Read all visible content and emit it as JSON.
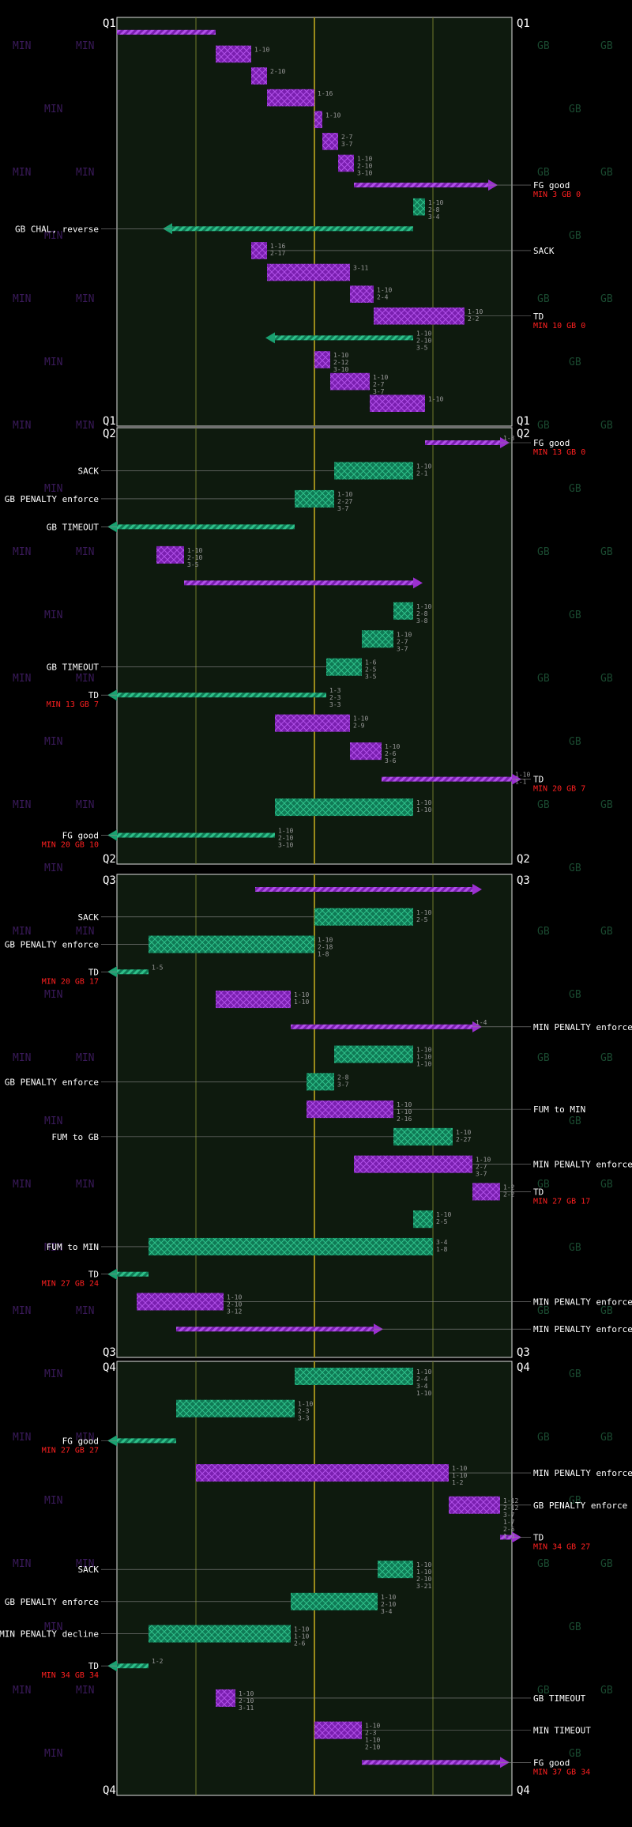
{
  "colors": {
    "background": "#000000",
    "field": "#0e1a0e",
    "min": "#9b30d0",
    "gb": "#1aa070",
    "grid": "#707a2a",
    "midfield": "#9a8a1a",
    "score": "#ff2020",
    "text": "#ffffff"
  },
  "watermarks": {
    "min": "MIN",
    "gb": "GB"
  },
  "quarters": [
    {
      "label": "Q1",
      "drives": [
        {
          "team": "min",
          "start": 100,
          "end": 75,
          "type": "line",
          "downs": [],
          "result": ""
        },
        {
          "team": "min",
          "start": 75,
          "end": 66,
          "type": "box",
          "downs": [
            "1-10"
          ],
          "result": ""
        },
        {
          "team": "min",
          "start": 66,
          "end": 62,
          "type": "box",
          "downs": [
            "2-10"
          ],
          "result": ""
        },
        {
          "team": "min",
          "start": 62,
          "end": 50,
          "type": "box",
          "downs": [
            "1-16"
          ],
          "result": ""
        },
        {
          "team": "min",
          "start": 50,
          "end": 48,
          "type": "box",
          "downs": [
            "1-10"
          ],
          "result": ""
        },
        {
          "team": "min",
          "start": 48,
          "end": 44,
          "type": "box",
          "downs": [
            "2-7",
            "3-7"
          ],
          "result": ""
        },
        {
          "team": "min",
          "start": 44,
          "end": 40,
          "type": "box",
          "downs": [
            "1-10",
            "2-10",
            "3-10"
          ],
          "result": ""
        },
        {
          "team": "min",
          "start": 40,
          "end": 6,
          "type": "arrow",
          "downs": [],
          "result": "FG good",
          "score": "MIN 3 GB 0"
        },
        {
          "team": "gb",
          "start": 25,
          "end": 22,
          "type": "box",
          "downs": [
            "1-10",
            "2-8",
            "3-4"
          ],
          "result": ""
        },
        {
          "team": "gb",
          "start": 25,
          "end": 86,
          "type": "arrow",
          "downs": [],
          "result": "GB CHAL, reverse"
        },
        {
          "team": "min",
          "start": 66,
          "end": 62,
          "type": "box",
          "downs": [
            "1-16",
            "2-17"
          ],
          "result": "SACK"
        },
        {
          "team": "min",
          "start": 62,
          "end": 41,
          "type": "box",
          "downs": [
            "3-11"
          ],
          "result": ""
        },
        {
          "team": "min",
          "start": 41,
          "end": 35,
          "type": "box",
          "downs": [
            "1-10",
            "2-4"
          ],
          "result": ""
        },
        {
          "team": "min",
          "start": 35,
          "end": 12,
          "type": "box",
          "downs": [
            "1-10",
            "2-2"
          ],
          "result": "TD",
          "score": "MIN 10 GB 0"
        },
        {
          "team": "gb",
          "start": 25,
          "end": 60,
          "type": "arrow",
          "downs": [
            "1-10",
            "2-10",
            "3-5"
          ],
          "result": ""
        },
        {
          "team": "min",
          "start": 50,
          "end": 46,
          "type": "box",
          "downs": [
            "1-10",
            "2-12",
            "3-10"
          ],
          "result": ""
        },
        {
          "team": "min",
          "start": 46,
          "end": 36,
          "type": "box",
          "downs": [
            "1-10",
            "2-7",
            "3-7"
          ],
          "result": ""
        },
        {
          "team": "min",
          "start": 36,
          "end": 22,
          "type": "box",
          "downs": [
            "1-10"
          ],
          "result": ""
        }
      ]
    },
    {
      "label": "Q2",
      "drives": [
        {
          "team": "min",
          "start": 22,
          "end": 3,
          "type": "arrow",
          "downs": [
            "1-3"
          ],
          "result": "FG good",
          "score": "MIN 13 GB 0"
        },
        {
          "team": "gb",
          "start": 25,
          "end": 45,
          "type": "box",
          "downs": [
            "1-10",
            "2-1"
          ],
          "result": "SACK"
        },
        {
          "team": "gb",
          "start": 45,
          "end": 55,
          "type": "box",
          "downs": [
            "1-10",
            "2-27",
            "3-7"
          ],
          "result": "GB PENALTY enforce"
        },
        {
          "team": "gb",
          "start": 55,
          "end": 100,
          "type": "arrow",
          "downs": [],
          "result": "GB TIMEOUT"
        },
        {
          "team": "min",
          "start": 90,
          "end": 83,
          "type": "box",
          "downs": [
            "1-10",
            "2-10",
            "3-5"
          ],
          "result": ""
        },
        {
          "team": "min",
          "start": 83,
          "end": 25,
          "type": "arrow",
          "downs": [],
          "result": ""
        },
        {
          "team": "gb",
          "start": 25,
          "end": 30,
          "type": "box",
          "downs": [
            "1-10",
            "2-8",
            "3-8"
          ],
          "result": ""
        },
        {
          "team": "gb",
          "start": 30,
          "end": 38,
          "type": "box",
          "downs": [
            "1-10",
            "2-7",
            "3-7"
          ],
          "result": ""
        },
        {
          "team": "gb",
          "start": 38,
          "end": 47,
          "type": "box",
          "downs": [
            "1-6",
            "2-5",
            "3-5"
          ],
          "result": "GB TIMEOUT"
        },
        {
          "team": "gb",
          "start": 47,
          "end": 100,
          "type": "arrow",
          "downs": [
            "1-3",
            "2-3",
            "3-3"
          ],
          "result": "TD",
          "score": "MIN 13 GB 7"
        },
        {
          "team": "min",
          "start": 60,
          "end": 41,
          "type": "box",
          "downs": [
            "1-10",
            "2-9"
          ],
          "result": ""
        },
        {
          "team": "min",
          "start": 41,
          "end": 33,
          "type": "box",
          "downs": [
            "1-10",
            "2-6",
            "3-6"
          ],
          "result": ""
        },
        {
          "team": "min",
          "start": 33,
          "end": 0,
          "type": "arrow",
          "downs": [
            "1-10",
            "1-1"
          ],
          "result": "TD",
          "score": "MIN 20 GB 7"
        },
        {
          "team": "gb",
          "start": 25,
          "end": 60,
          "type": "box",
          "downs": [
            "1-10",
            "1-10"
          ],
          "result": ""
        },
        {
          "team": "gb",
          "start": 60,
          "end": 100,
          "type": "arrow",
          "downs": [
            "1-10",
            "2-10",
            "3-10"
          ],
          "result": "FG good",
          "score": "MIN 20 GB 10"
        }
      ]
    },
    {
      "label": "Q3",
      "drives": [
        {
          "team": "min",
          "start": 65,
          "end": 10,
          "type": "arrow",
          "downs": [],
          "result": ""
        },
        {
          "team": "gb",
          "start": 25,
          "end": 50,
          "type": "box",
          "downs": [
            "1-10",
            "2-5"
          ],
          "result": "SACK"
        },
        {
          "team": "gb",
          "start": 50,
          "end": 92,
          "type": "box",
          "downs": [
            "1-10",
            "2-18",
            "1-8"
          ],
          "result": "GB PENALTY enforce"
        },
        {
          "team": "gb",
          "start": 92,
          "end": 100,
          "type": "arrow",
          "downs": [
            "1-5"
          ],
          "result": "TD",
          "score": "MIN 20 GB 17"
        },
        {
          "team": "min",
          "start": 75,
          "end": 56,
          "type": "box",
          "downs": [
            "1-10",
            "1-10"
          ],
          "result": ""
        },
        {
          "team": "min",
          "start": 56,
          "end": 10,
          "type": "arrow",
          "downs": [
            "1-4"
          ],
          "result": "MIN PENALTY enforce"
        },
        {
          "team": "gb",
          "start": 25,
          "end": 45,
          "type": "box",
          "downs": [
            "1-10",
            "1-10",
            "1-10"
          ],
          "result": ""
        },
        {
          "team": "gb",
          "start": 45,
          "end": 52,
          "type": "box",
          "downs": [
            "2-8",
            "3-7"
          ],
          "result": "GB PENALTY enforce"
        },
        {
          "team": "min",
          "start": 52,
          "end": 30,
          "type": "box",
          "downs": [
            "1-10",
            "1-10",
            "2-16"
          ],
          "result": "FUM to MIN"
        },
        {
          "team": "gb",
          "start": 30,
          "end": 15,
          "type": "box",
          "downs": [
            "1-10",
            "2-27"
          ],
          "result": "FUM to GB"
        },
        {
          "team": "min",
          "start": 40,
          "end": 10,
          "type": "box",
          "downs": [
            "1-10",
            "2-7",
            "3-7"
          ],
          "result": "MIN PENALTY enforce"
        },
        {
          "team": "min",
          "start": 10,
          "end": 3,
          "type": "box",
          "downs": [
            "1-2",
            "2-2"
          ],
          "result": "TD",
          "score": "MIN 27 GB 17"
        },
        {
          "team": "gb",
          "start": 25,
          "end": 20,
          "type": "box",
          "downs": [
            "1-10",
            "2-5"
          ],
          "result": ""
        },
        {
          "team": "gb",
          "start": 20,
          "end": 92,
          "type": "box",
          "downs": [
            "3-4",
            "1-8"
          ],
          "result": "FUM to MIN"
        },
        {
          "team": "gb",
          "start": 92,
          "end": 100,
          "type": "arrow",
          "downs": [],
          "result": "TD",
          "score": "MIN 27 GB 24"
        },
        {
          "team": "min",
          "start": 95,
          "end": 73,
          "type": "box",
          "downs": [
            "1-10",
            "2-10",
            "3-12"
          ],
          "result": "MIN PENALTY enforce"
        },
        {
          "team": "min",
          "start": 85,
          "end": 35,
          "type": "arrow",
          "downs": [],
          "result": "MIN PENALTY enforce"
        }
      ]
    },
    {
      "label": "Q4",
      "drives": [
        {
          "team": "gb",
          "start": 25,
          "end": 55,
          "type": "box",
          "downs": [
            "1-10",
            "2-4",
            "3-4",
            "1-10"
          ],
          "result": ""
        },
        {
          "team": "gb",
          "start": 55,
          "end": 85,
          "type": "box",
          "downs": [
            "1-10",
            "2-3",
            "3-3"
          ],
          "result": ""
        },
        {
          "team": "gb",
          "start": 85,
          "end": 100,
          "type": "arrow",
          "downs": [],
          "result": "FG good",
          "score": "MIN 27 GB 27"
        },
        {
          "team": "min",
          "start": 80,
          "end": 16,
          "type": "box",
          "downs": [
            "1-10",
            "1-10",
            "1-2"
          ],
          "result": "MIN PENALTY enforce"
        },
        {
          "team": "min",
          "start": 16,
          "end": 3,
          "type": "box",
          "downs": [
            "1-12",
            "2-12",
            "3-7",
            "1-7",
            "2-5",
            "1-3"
          ],
          "result": "GB PENALTY enforce"
        },
        {
          "team": "min",
          "start": 3,
          "end": 0,
          "type": "arrow",
          "downs": [],
          "result": "TD",
          "score": "MIN 34 GB 27"
        },
        {
          "team": "gb",
          "start": 25,
          "end": 34,
          "type": "box",
          "downs": [
            "1-10",
            "1-10",
            "2-10",
            "3-21"
          ],
          "result": "SACK"
        },
        {
          "team": "gb",
          "start": 34,
          "end": 56,
          "type": "box",
          "downs": [
            "1-10",
            "2-10",
            "3-4"
          ],
          "result": "GB PENALTY enforce"
        },
        {
          "team": "gb",
          "start": 56,
          "end": 92,
          "type": "box",
          "downs": [
            "1-10",
            "1-10",
            "2-6"
          ],
          "result": "MIN PENALTY decline"
        },
        {
          "team": "gb",
          "start": 92,
          "end": 100,
          "type": "arrow",
          "downs": [
            "1-2"
          ],
          "result": "TD",
          "score": "MIN 34 GB 34"
        },
        {
          "team": "min",
          "start": 75,
          "end": 70,
          "type": "box",
          "downs": [
            "1-10",
            "2-10",
            "3-11"
          ],
          "result": "GB TIMEOUT"
        },
        {
          "team": "min",
          "start": 50,
          "end": 38,
          "type": "box",
          "downs": [
            "1-10",
            "2-3",
            "1-10",
            "2-10"
          ],
          "result": "MIN TIMEOUT"
        },
        {
          "team": "min",
          "start": 38,
          "end": 3,
          "type": "arrow",
          "downs": [],
          "result": "FG good",
          "score": "MIN 37 GB 34"
        }
      ]
    }
  ],
  "annotations": {
    "left": [
      {
        "text": "SACK",
        "y": 0
      }
    ],
    "right": []
  },
  "chart_data": {
    "type": "table",
    "title": "",
    "quarter_labels": [
      "Q1",
      "Q2",
      "Q3",
      "Q4"
    ],
    "scoring": [
      {
        "quarter": "Q1",
        "event": "FG good",
        "score": "MIN 3 GB 0"
      },
      {
        "quarter": "Q1",
        "event": "TD",
        "score": "MIN 10 GB 0"
      },
      {
        "quarter": "Q2",
        "event": "FG good",
        "score": "MIN 13 GB 0"
      },
      {
        "quarter": "Q2",
        "event": "TD",
        "score": "MIN 13 GB 7"
      },
      {
        "quarter": "Q2",
        "event": "TD",
        "score": "MIN 20 GB 7"
      },
      {
        "quarter": "Q2",
        "event": "FG good",
        "score": "MIN 20 GB 10"
      },
      {
        "quarter": "Q3",
        "event": "TD",
        "score": "MIN 20 GB 17"
      },
      {
        "quarter": "Q3",
        "event": "TD",
        "score": "MIN 27 GB 17"
      },
      {
        "quarter": "Q3",
        "event": "TD",
        "score": "MIN 27 GB 24"
      },
      {
        "quarter": "Q4",
        "event": "FG good",
        "score": "MIN 27 GB 27"
      },
      {
        "quarter": "Q4",
        "event": "TD",
        "score": "MIN 34 GB 27"
      },
      {
        "quarter": "Q4",
        "event": "TD",
        "score": "MIN 34 GB 34"
      },
      {
        "quarter": "Q4",
        "event": "FG good",
        "score": "MIN 37 GB 34"
      }
    ]
  }
}
